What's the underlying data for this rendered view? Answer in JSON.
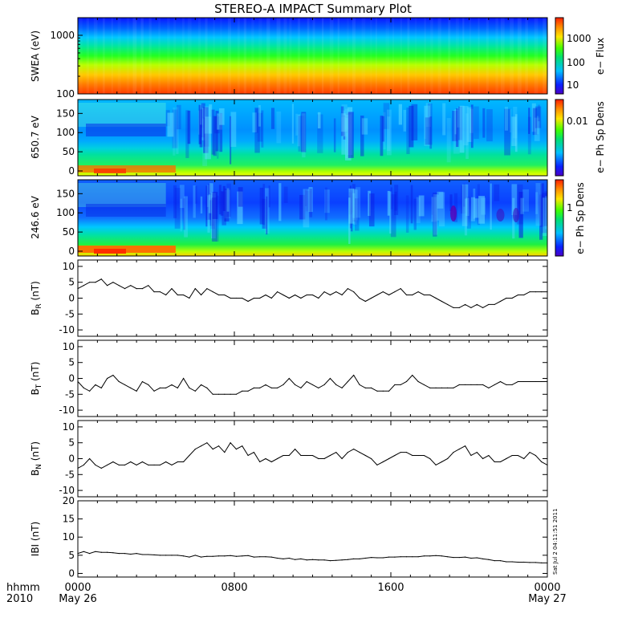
{
  "title": "STEREO-A IMPACT Summary Plot",
  "stamp": "Sat Jul  2 04:11:51 2011",
  "footer": {
    "left_line1": "hhmm",
    "left_line2": "2010",
    "tick_labels": [
      "0000",
      "0800",
      "1600",
      "0000"
    ],
    "date_labels": [
      "May 26",
      "May 27"
    ]
  },
  "chart_data": [
    {
      "type": "heatmap",
      "ylabel": "SWEA (eV)",
      "y_log": true,
      "ylim": [
        100,
        2000
      ],
      "yticks": [
        100,
        1000
      ],
      "xlim_hours": [
        0,
        24
      ],
      "colorbar": {
        "label": "e− Flux",
        "log": true,
        "ticks": [
          "10",
          "100",
          "1000"
        ]
      },
      "description": "energy spectrogram: high flux at low energy (red near 100 eV), decreasing to blue above ~1500 eV, nearly uniform in time"
    },
    {
      "type": "heatmap",
      "ylabel": "650.7 eV",
      "ylim": [
        0,
        180
      ],
      "yticks": [
        0,
        50,
        100,
        150
      ],
      "xlim_hours": [
        0,
        24
      ],
      "colorbar": {
        "label": "e− Ph Sp Dens",
        "log": true,
        "ticks": [
          "0.01"
        ]
      },
      "description": "pitch-angle distribution: strong beam near 0 deg (red/yellow) before ~05:00, green band 20-60 deg, blue at 70-180 deg with dark-blue patches"
    },
    {
      "type": "heatmap",
      "ylabel": "246.6 eV",
      "ylim": [
        0,
        180
      ],
      "yticks": [
        0,
        50,
        100,
        150
      ],
      "xlim_hours": [
        0,
        24
      ],
      "colorbar": {
        "label": "e− Ph Sp Dens",
        "log": true,
        "ticks": [
          "1"
        ]
      },
      "description": "pitch-angle distribution: red beam near 0 deg until ~05:00, green 20-60 deg, blue above 80 deg with purple patches near 20:00 and 22:00"
    },
    {
      "type": "line",
      "ylabel": "B_R (nT)",
      "ylim": [
        -12,
        12
      ],
      "yticks": [
        -10,
        -5,
        0,
        5,
        10
      ],
      "x_hours": [
        0,
        0.3,
        0.6,
        0.9,
        1.2,
        1.5,
        1.8,
        2.1,
        2.4,
        2.7,
        3,
        3.3,
        3.6,
        3.9,
        4.2,
        4.5,
        4.8,
        5.1,
        5.4,
        5.7,
        6,
        6.3,
        6.6,
        6.9,
        7.2,
        7.5,
        7.8,
        8.1,
        8.4,
        8.7,
        9,
        9.3,
        9.6,
        9.9,
        10.2,
        10.5,
        10.8,
        11.1,
        11.4,
        11.7,
        12,
        12.3,
        12.6,
        12.9,
        13.2,
        13.5,
        13.8,
        14.1,
        14.4,
        14.7,
        15,
        15.3,
        15.6,
        15.9,
        16.2,
        16.5,
        16.8,
        17.1,
        17.4,
        17.7,
        18,
        18.3,
        18.6,
        18.9,
        19.2,
        19.5,
        19.8,
        20.1,
        20.4,
        20.7,
        21,
        21.3,
        21.6,
        21.9,
        22.2,
        22.5,
        22.8,
        23.1,
        23.4,
        23.7,
        24
      ],
      "values": [
        3,
        4,
        5,
        5,
        6,
        4,
        5,
        4,
        3,
        4,
        3,
        3,
        4,
        2,
        2,
        1,
        3,
        1,
        1,
        0,
        3,
        1,
        3,
        2,
        1,
        1,
        0,
        0,
        0,
        -1,
        0,
        0,
        1,
        0,
        2,
        1,
        0,
        1,
        0,
        1,
        1,
        0,
        2,
        1,
        2,
        1,
        3,
        2,
        0,
        -1,
        0,
        1,
        2,
        1,
        2,
        3,
        1,
        1,
        2,
        1,
        1,
        0,
        -1,
        -2,
        -3,
        -3,
        -2,
        -3,
        -2,
        -3,
        -2,
        -2,
        -1,
        0,
        0,
        1,
        1,
        2,
        2,
        2,
        2
      ]
    },
    {
      "type": "line",
      "ylabel": "B_T (nT)",
      "ylim": [
        -12,
        12
      ],
      "yticks": [
        -10,
        -5,
        0,
        5,
        10
      ],
      "x_hours": [
        0,
        0.3,
        0.6,
        0.9,
        1.2,
        1.5,
        1.8,
        2.1,
        2.4,
        2.7,
        3,
        3.3,
        3.6,
        3.9,
        4.2,
        4.5,
        4.8,
        5.1,
        5.4,
        5.7,
        6,
        6.3,
        6.6,
        6.9,
        7.2,
        7.5,
        7.8,
        8.1,
        8.4,
        8.7,
        9,
        9.3,
        9.6,
        9.9,
        10.2,
        10.5,
        10.8,
        11.1,
        11.4,
        11.7,
        12,
        12.3,
        12.6,
        12.9,
        13.2,
        13.5,
        13.8,
        14.1,
        14.4,
        14.7,
        15,
        15.3,
        15.6,
        15.9,
        16.2,
        16.5,
        16.8,
        17.1,
        17.4,
        17.7,
        18,
        18.3,
        18.6,
        18.9,
        19.2,
        19.5,
        19.8,
        20.1,
        20.4,
        20.7,
        21,
        21.3,
        21.6,
        21.9,
        22.2,
        22.5,
        22.8,
        23.1,
        23.4,
        23.7,
        24
      ],
      "values": [
        -1,
        -3,
        -4,
        -2,
        -3,
        0,
        1,
        -1,
        -2,
        -3,
        -4,
        -1,
        -2,
        -4,
        -3,
        -3,
        -2,
        -3,
        0,
        -3,
        -4,
        -2,
        -3,
        -5,
        -5,
        -5,
        -5,
        -5,
        -4,
        -4,
        -3,
        -3,
        -2,
        -3,
        -3,
        -2,
        0,
        -2,
        -3,
        -1,
        -2,
        -3,
        -2,
        0,
        -2,
        -3,
        -1,
        1,
        -2,
        -3,
        -3,
        -4,
        -4,
        -4,
        -2,
        -2,
        -1,
        1,
        -1,
        -2,
        -3,
        -3,
        -3,
        -3,
        -3,
        -2,
        -2,
        -2,
        -2,
        -2,
        -3,
        -2,
        -1,
        -2,
        -2,
        -1,
        -1,
        -1,
        -1,
        -1,
        -1
      ]
    },
    {
      "type": "line",
      "ylabel": "B_N (nT)",
      "ylim": [
        -12,
        12
      ],
      "yticks": [
        -10,
        -5,
        0,
        5,
        10
      ],
      "x_hours": [
        0,
        0.3,
        0.6,
        0.9,
        1.2,
        1.5,
        1.8,
        2.1,
        2.4,
        2.7,
        3,
        3.3,
        3.6,
        3.9,
        4.2,
        4.5,
        4.8,
        5.1,
        5.4,
        5.7,
        6,
        6.3,
        6.6,
        6.9,
        7.2,
        7.5,
        7.8,
        8.1,
        8.4,
        8.7,
        9,
        9.3,
        9.6,
        9.9,
        10.2,
        10.5,
        10.8,
        11.1,
        11.4,
        11.7,
        12,
        12.3,
        12.6,
        12.9,
        13.2,
        13.5,
        13.8,
        14.1,
        14.4,
        14.7,
        15,
        15.3,
        15.6,
        15.9,
        16.2,
        16.5,
        16.8,
        17.1,
        17.4,
        17.7,
        18,
        18.3,
        18.6,
        18.9,
        19.2,
        19.5,
        19.8,
        20.1,
        20.4,
        20.7,
        21,
        21.3,
        21.6,
        21.9,
        22.2,
        22.5,
        22.8,
        23.1,
        23.4,
        23.7,
        24
      ],
      "values": [
        -3,
        -2,
        0,
        -2,
        -3,
        -2,
        -1,
        -2,
        -2,
        -1,
        -2,
        -1,
        -2,
        -2,
        -2,
        -1,
        -2,
        -1,
        -1,
        1,
        3,
        4,
        5,
        3,
        4,
        2,
        5,
        3,
        4,
        1,
        2,
        -1,
        0,
        -1,
        0,
        1,
        1,
        3,
        1,
        1,
        1,
        0,
        0,
        1,
        2,
        0,
        2,
        3,
        2,
        1,
        0,
        -2,
        -1,
        0,
        1,
        2,
        2,
        1,
        1,
        1,
        0,
        -2,
        -1,
        0,
        2,
        3,
        4,
        1,
        2,
        0,
        1,
        -1,
        -1,
        0,
        1,
        1,
        0,
        2,
        1,
        -1,
        -2
      ]
    },
    {
      "type": "line",
      "ylabel": "|B| (nT)",
      "ylim": [
        -1,
        20
      ],
      "yticks": [
        0,
        5,
        10,
        15,
        20
      ],
      "x_hours": [
        0,
        0.3,
        0.6,
        0.9,
        1.2,
        1.5,
        1.8,
        2.1,
        2.4,
        2.7,
        3,
        3.3,
        3.6,
        3.9,
        4.2,
        4.5,
        4.8,
        5.1,
        5.4,
        5.7,
        6,
        6.3,
        6.6,
        6.9,
        7.2,
        7.5,
        7.8,
        8.1,
        8.4,
        8.7,
        9,
        9.3,
        9.6,
        9.9,
        10.2,
        10.5,
        10.8,
        11.1,
        11.4,
        11.7,
        12,
        12.3,
        12.6,
        12.9,
        13.2,
        13.5,
        13.8,
        14.1,
        14.4,
        14.7,
        15,
        15.3,
        15.6,
        15.9,
        16.2,
        16.5,
        16.8,
        17.1,
        17.4,
        17.7,
        18,
        18.3,
        18.6,
        18.9,
        19.2,
        19.5,
        19.8,
        20.1,
        20.4,
        20.7,
        21,
        21.3,
        21.6,
        21.9,
        22.2,
        22.5,
        22.8,
        23.1,
        23.4,
        23.7,
        24
      ],
      "values": [
        5.5,
        6,
        5.5,
        6,
        5.8,
        5.8,
        5.7,
        5.5,
        5.5,
        5.3,
        5.5,
        5.2,
        5.2,
        5.1,
        5,
        5,
        5,
        5,
        4.8,
        4.5,
        5,
        4.5,
        4.7,
        4.7,
        4.8,
        4.8,
        4.9,
        4.7,
        4.8,
        4.9,
        4.5,
        4.6,
        4.6,
        4.5,
        4.2,
        4,
        4.2,
        3.8,
        4,
        3.7,
        3.8,
        3.7,
        3.7,
        3.5,
        3.6,
        3.7,
        3.8,
        4,
        4,
        4.2,
        4.4,
        4.3,
        4.3,
        4.5,
        4.5,
        4.6,
        4.6,
        4.6,
        4.6,
        4.8,
        4.8,
        4.9,
        4.8,
        4.6,
        4.4,
        4.4,
        4.5,
        4.2,
        4.3,
        4,
        3.8,
        3.5,
        3.5,
        3.2,
        3.2,
        3.1,
        3.1,
        3,
        3,
        2.9,
        2.9
      ]
    }
  ]
}
